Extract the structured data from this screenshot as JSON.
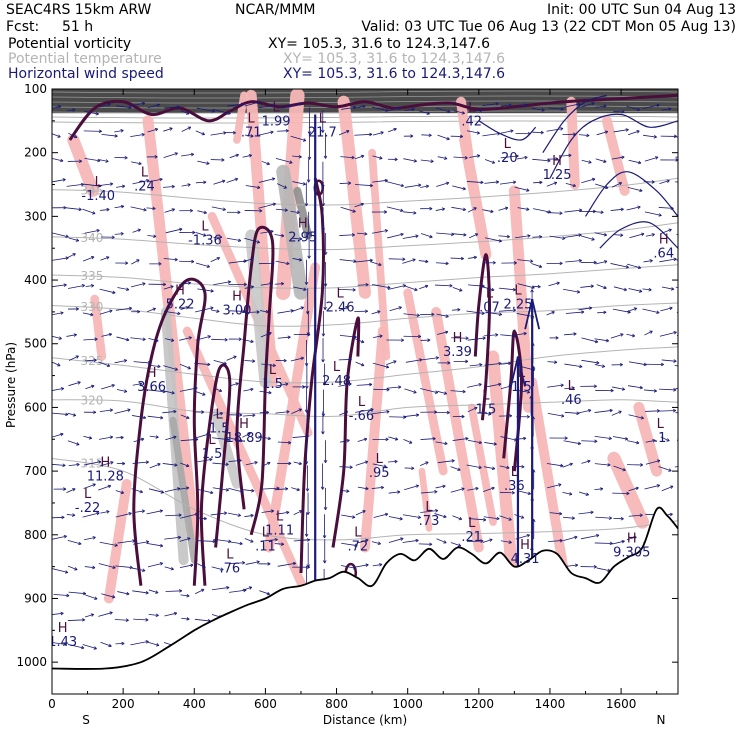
{
  "header": {
    "model": "SEAC4RS 15km ARW",
    "org": "NCAR/MMM",
    "init": "Init: 00 UTC Sun 04 Aug 13",
    "fcst_label": "Fcst:",
    "fcst_value": "51 h",
    "valid": "Valid: 03 UTC Tue 06 Aug 13 (22 CDT Mon 05 Aug 13)",
    "fields": [
      {
        "name": "Potential vorticity",
        "xy": "XY= 105.3, 31.6 to 124.3,147.6",
        "color": "#000000"
      },
      {
        "name": "Potential temperature",
        "xy": "XY= 105.3, 31.6 to 124.3,147.6",
        "color": "#b4b4b4"
      },
      {
        "name": "Horizontal wind speed",
        "xy": "XY= 105.3, 31.6 to 124.3,147.6",
        "color": "#1a1a78"
      }
    ]
  },
  "colors": {
    "pv_contour": "#4a0e3c",
    "theta": "#b4b4b4",
    "wind": "#1a1a78",
    "shade_pink": "#f7b8b8",
    "shade_grey": "#bcbcbc",
    "terrain": "#000000"
  },
  "chart_data": {
    "type": "cross-section",
    "xlabel": "Distance (km)",
    "ylabel": "Pressure (hPa)",
    "xlim": [
      0,
      1760
    ],
    "ylim": [
      1050,
      100
    ],
    "x_ticks": [
      0,
      200,
      400,
      600,
      800,
      1000,
      1200,
      1400,
      1600
    ],
    "y_ticks": [
      100,
      200,
      300,
      400,
      500,
      600,
      700,
      800,
      900,
      1000
    ],
    "end_labels": {
      "left": "S",
      "right": "N"
    },
    "terrain": {
      "x": [
        0,
        150,
        250,
        330,
        400,
        450,
        500,
        550,
        600,
        650,
        700,
        740,
        780,
        820,
        860,
        900,
        940,
        980,
        1020,
        1060,
        1100,
        1140,
        1180,
        1220,
        1260,
        1300,
        1340,
        1380,
        1420,
        1460,
        1500,
        1540,
        1580,
        1620,
        1660,
        1700,
        1730,
        1760
      ],
      "p": [
        1010,
        1010,
        1000,
        975,
        950,
        935,
        922,
        910,
        900,
        885,
        880,
        872,
        868,
        858,
        868,
        880,
        845,
        830,
        840,
        822,
        838,
        820,
        830,
        845,
        828,
        850,
        840,
        825,
        830,
        860,
        868,
        875,
        850,
        835,
        820,
        760,
        770,
        790
      ]
    },
    "theta_isentropes": [
      {
        "label": "315",
        "p": [
          680,
          700,
          760,
          800,
          808,
          800,
          798,
          795,
          790,
          778
        ]
      },
      {
        "label": "320",
        "p": [
          588,
          590,
          606,
          610,
          614,
          600,
          596,
          592,
          588,
          592
        ]
      },
      {
        "label": "325",
        "p": [
          522,
          534,
          548,
          560,
          560,
          548,
          536,
          520,
          510,
          505
        ]
      },
      {
        "label": "330",
        "p": [
          440,
          446,
          460,
          472,
          470,
          460,
          452,
          448,
          440,
          436
        ]
      },
      {
        "label": "335",
        "p": [
          392,
          396,
          406,
          412,
          412,
          404,
          396,
          390,
          382,
          376
        ]
      },
      {
        "label": "340",
        "p": [
          332,
          336,
          344,
          350,
          352,
          346,
          340,
          332,
          322,
          310
        ]
      },
      {
        "label": "345",
        "p": [
          258,
          262,
          272,
          280,
          282,
          276,
          270,
          262,
          252,
          240
        ]
      }
    ],
    "theta_x": [
      0,
      200,
      400,
      600,
      800,
      1000,
      1200,
      1400,
      1600,
      1760
    ],
    "pv_extrema": [
      {
        "type": "L",
        "value": "1.99",
        "x": 630,
        "p": 148
      },
      {
        "type": "L",
        "value": ".71",
        "x": 560,
        "p": 165
      },
      {
        "type": "L",
        "value": "21.7",
        "x": 760,
        "p": 165
      },
      {
        "type": "L",
        "value": ".42",
        "x": 1180,
        "p": 148
      },
      {
        "type": "L",
        "value": ".20",
        "x": 1280,
        "p": 205
      },
      {
        "type": "H",
        "value": "1.25",
        "x": 1420,
        "p": 232
      },
      {
        "type": "L",
        "value": "-1.40",
        "x": 130,
        "p": 265
      },
      {
        "type": "L",
        "value": ".24",
        "x": 260,
        "p": 250
      },
      {
        "type": "L",
        "value": "-1.36",
        "x": 430,
        "p": 335
      },
      {
        "type": "H",
        "value": "2.95",
        "x": 705,
        "p": 330
      },
      {
        "type": "H",
        "value": ".64",
        "x": 1720,
        "p": 355
      },
      {
        "type": "H",
        "value": "5.22",
        "x": 360,
        "p": 435
      },
      {
        "type": "H",
        "value": "3.00",
        "x": 520,
        "p": 445
      },
      {
        "type": "L",
        "value": "2.46",
        "x": 810,
        "p": 440
      },
      {
        "type": "L",
        "value": ".07",
        "x": 1230,
        "p": 440
      },
      {
        "type": "L",
        "value": "2.25",
        "x": 1310,
        "p": 435
      },
      {
        "type": "H",
        "value": "3.39",
        "x": 1140,
        "p": 510
      },
      {
        "type": "H",
        "value": "3.66",
        "x": 280,
        "p": 565
      },
      {
        "type": "L",
        "value": "1.5",
        "x": 620,
        "p": 560
      },
      {
        "type": "L",
        "value": "2.48",
        "x": 800,
        "p": 555
      },
      {
        "type": "L",
        "value": "1.5",
        "x": 1320,
        "p": 565
      },
      {
        "type": "L",
        "value": ".46",
        "x": 1460,
        "p": 585
      },
      {
        "type": "L",
        "value": "-.66",
        "x": 870,
        "p": 610
      },
      {
        "type": "L",
        "value": "1.5",
        "x": 1220,
        "p": 600
      },
      {
        "type": "L",
        "value": "1.5",
        "x": 470,
        "p": 630
      },
      {
        "type": "H",
        "value": "18.89",
        "x": 540,
        "p": 645
      },
      {
        "type": "L",
        "value": ".1",
        "x": 1710,
        "p": 645
      },
      {
        "type": "L",
        "value": "1.5",
        "x": 450,
        "p": 670
      },
      {
        "type": "L",
        "value": ".95",
        "x": 920,
        "p": 700
      },
      {
        "type": "H",
        "value": "11.28",
        "x": 150,
        "p": 705
      },
      {
        "type": "L",
        "value": ".36",
        "x": 1300,
        "p": 720
      },
      {
        "type": "L",
        "value": "-.22",
        "x": 100,
        "p": 755
      },
      {
        "type": "L",
        "value": ".73",
        "x": 1060,
        "p": 775
      },
      {
        "type": "L",
        "value": "1.11",
        "x": 640,
        "p": 790
      },
      {
        "type": "L",
        "value": ".21",
        "x": 1180,
        "p": 800
      },
      {
        "type": "L",
        "value": ".11",
        "x": 600,
        "p": 815
      },
      {
        "type": "L",
        "value": ".72",
        "x": 860,
        "p": 815
      },
      {
        "type": "H",
        "value": "9.305",
        "x": 1630,
        "p": 825
      },
      {
        "type": "H",
        "value": "4.31",
        "x": 1330,
        "p": 835
      },
      {
        "type": "L",
        "value": ".76",
        "x": 500,
        "p": 850
      },
      {
        "type": "H",
        "value": "1.43",
        "x": 30,
        "p": 965
      }
    ]
  }
}
